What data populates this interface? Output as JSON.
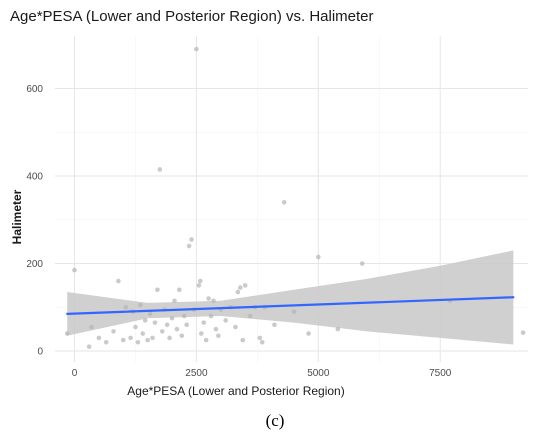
{
  "chart_data": {
    "type": "scatter",
    "title": "Age*PESA (Lower and Posterior Region)  vs. Halimeter",
    "xlabel": "Age*PESA (Lower and Posterior Region)",
    "ylabel": "Halimeter",
    "xlim": [
      -400,
      9300
    ],
    "ylim": [
      -25,
      720
    ],
    "x_ticks": [
      0,
      2500,
      5000,
      7500
    ],
    "x_tick_labels": [
      "0",
      "2500",
      "5000",
      "7500"
    ],
    "y_ticks": [
      0,
      200,
      400,
      600
    ],
    "y_tick_labels": [
      "0",
      "200",
      "400",
      "600"
    ],
    "grid": true,
    "colors": {
      "points": "#b3b3b3",
      "fit_line": "#3366ff",
      "ci_band": "#c8c8c8"
    },
    "points": [
      {
        "x": -150,
        "y": 40
      },
      {
        "x": 0,
        "y": 185
      },
      {
        "x": 300,
        "y": 10
      },
      {
        "x": 350,
        "y": 55
      },
      {
        "x": 500,
        "y": 30
      },
      {
        "x": 650,
        "y": 20
      },
      {
        "x": 800,
        "y": 45
      },
      {
        "x": 900,
        "y": 160
      },
      {
        "x": 1000,
        "y": 25
      },
      {
        "x": 1050,
        "y": 100
      },
      {
        "x": 1150,
        "y": 30
      },
      {
        "x": 1200,
        "y": 90
      },
      {
        "x": 1250,
        "y": 55
      },
      {
        "x": 1300,
        "y": 20
      },
      {
        "x": 1350,
        "y": 105
      },
      {
        "x": 1400,
        "y": 40
      },
      {
        "x": 1450,
        "y": 70
      },
      {
        "x": 1500,
        "y": 25
      },
      {
        "x": 1550,
        "y": 85
      },
      {
        "x": 1600,
        "y": 30
      },
      {
        "x": 1650,
        "y": 65
      },
      {
        "x": 1700,
        "y": 140
      },
      {
        "x": 1750,
        "y": 415
      },
      {
        "x": 1800,
        "y": 45
      },
      {
        "x": 1850,
        "y": 95
      },
      {
        "x": 1900,
        "y": 60
      },
      {
        "x": 1950,
        "y": 30
      },
      {
        "x": 2000,
        "y": 75
      },
      {
        "x": 2050,
        "y": 115
      },
      {
        "x": 2100,
        "y": 50
      },
      {
        "x": 2150,
        "y": 140
      },
      {
        "x": 2200,
        "y": 35
      },
      {
        "x": 2250,
        "y": 80
      },
      {
        "x": 2300,
        "y": 60
      },
      {
        "x": 2350,
        "y": 240
      },
      {
        "x": 2400,
        "y": 255
      },
      {
        "x": 2450,
        "y": 95
      },
      {
        "x": 2500,
        "y": 690
      },
      {
        "x": 2550,
        "y": 150
      },
      {
        "x": 2580,
        "y": 160
      },
      {
        "x": 2600,
        "y": 40
      },
      {
        "x": 2650,
        "y": 65
      },
      {
        "x": 2700,
        "y": 25
      },
      {
        "x": 2750,
        "y": 120
      },
      {
        "x": 2800,
        "y": 80
      },
      {
        "x": 2850,
        "y": 115
      },
      {
        "x": 2900,
        "y": 50
      },
      {
        "x": 2950,
        "y": 35
      },
      {
        "x": 3000,
        "y": 95
      },
      {
        "x": 3100,
        "y": 70
      },
      {
        "x": 3200,
        "y": 100
      },
      {
        "x": 3300,
        "y": 55
      },
      {
        "x": 3350,
        "y": 135
      },
      {
        "x": 3400,
        "y": 145
      },
      {
        "x": 3450,
        "y": 25
      },
      {
        "x": 3500,
        "y": 150
      },
      {
        "x": 3600,
        "y": 80
      },
      {
        "x": 3700,
        "y": 100
      },
      {
        "x": 3800,
        "y": 30
      },
      {
        "x": 3850,
        "y": 20
      },
      {
        "x": 3900,
        "y": 100
      },
      {
        "x": 4100,
        "y": 60
      },
      {
        "x": 4300,
        "y": 340
      },
      {
        "x": 4500,
        "y": 90
      },
      {
        "x": 4800,
        "y": 40
      },
      {
        "x": 5000,
        "y": 215
      },
      {
        "x": 5400,
        "y": 50
      },
      {
        "x": 5900,
        "y": 200
      },
      {
        "x": 7700,
        "y": 115
      },
      {
        "x": 9200,
        "y": 42
      }
    ],
    "fit_line": [
      {
        "x": -150,
        "y": 85
      },
      {
        "x": 9000,
        "y": 123
      }
    ],
    "ci_band": [
      {
        "x": -150,
        "lower": 35,
        "upper": 135
      },
      {
        "x": 1500,
        "lower": 75,
        "upper": 110
      },
      {
        "x": 3000,
        "lower": 80,
        "upper": 115
      },
      {
        "x": 4500,
        "lower": 65,
        "upper": 140
      },
      {
        "x": 6000,
        "lower": 45,
        "upper": 165
      },
      {
        "x": 7500,
        "lower": 30,
        "upper": 195
      },
      {
        "x": 9000,
        "lower": 15,
        "upper": 230
      }
    ]
  },
  "panel_label": "(c)"
}
